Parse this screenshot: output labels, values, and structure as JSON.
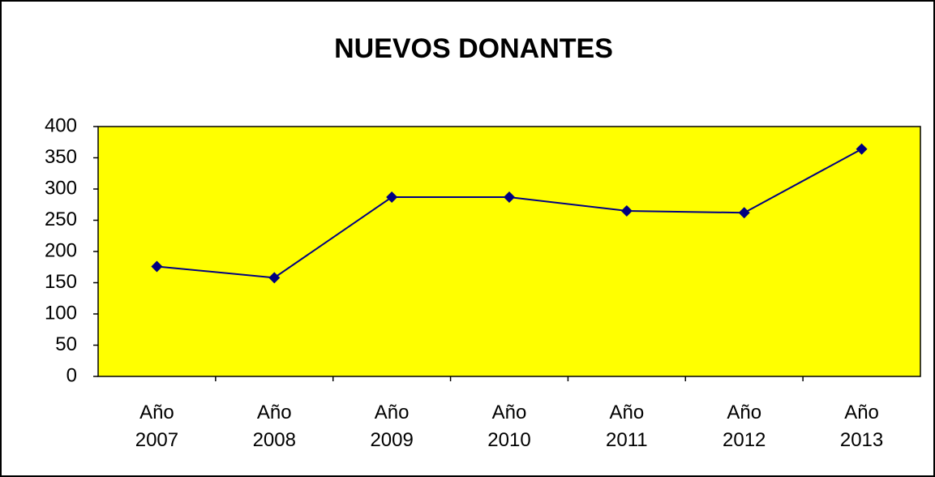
{
  "chart_data": {
    "type": "line",
    "title": "NUEVOS DONANTES",
    "categories": [
      "Año 2007",
      "Año 2008",
      "Año 2009",
      "Año 2010",
      "Año 2011",
      "Año 2012",
      "Año 2013"
    ],
    "values": [
      176,
      158,
      287,
      287,
      265,
      262,
      364
    ],
    "color": "#000080",
    "background": "#ffff00",
    "ylim": [
      0,
      400
    ],
    "yticks": [
      0,
      50,
      100,
      150,
      200,
      250,
      300,
      350,
      400
    ],
    "grid": false
  }
}
